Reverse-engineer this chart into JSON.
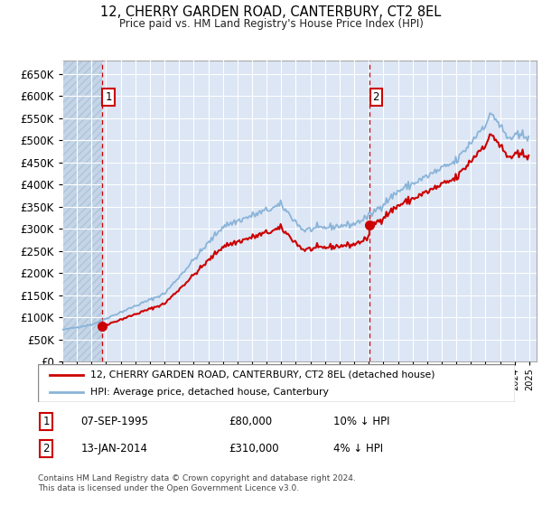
{
  "title": "12, CHERRY GARDEN ROAD, CANTERBURY, CT2 8EL",
  "subtitle": "Price paid vs. HM Land Registry's House Price Index (HPI)",
  "property_label": "12, CHERRY GARDEN ROAD, CANTERBURY, CT2 8EL (detached house)",
  "hpi_label": "HPI: Average price, detached house, Canterbury",
  "transaction1_date": "07-SEP-1995",
  "transaction1_price": 80000,
  "transaction1_hpi": "10% ↓ HPI",
  "transaction2_date": "13-JAN-2014",
  "transaction2_price": 310000,
  "transaction2_hpi": "4% ↓ HPI",
  "footer": "Contains HM Land Registry data © Crown copyright and database right 2024.\nThis data is licensed under the Open Government Licence v3.0.",
  "ylim": [
    0,
    680000
  ],
  "yticks": [
    0,
    50000,
    100000,
    150000,
    200000,
    250000,
    300000,
    350000,
    400000,
    450000,
    500000,
    550000,
    600000,
    650000
  ],
  "plot_bg": "#dce6f5",
  "grid_color": "#ffffff",
  "property_color": "#cc0000",
  "hpi_color": "#8ab4d8",
  "marker_color": "#cc0000",
  "vline_color": "#cc0000",
  "box_color": "#cc0000",
  "hatch_color": "#c5d5e8",
  "xlim_left": 1993,
  "xlim_right": 2025.5
}
